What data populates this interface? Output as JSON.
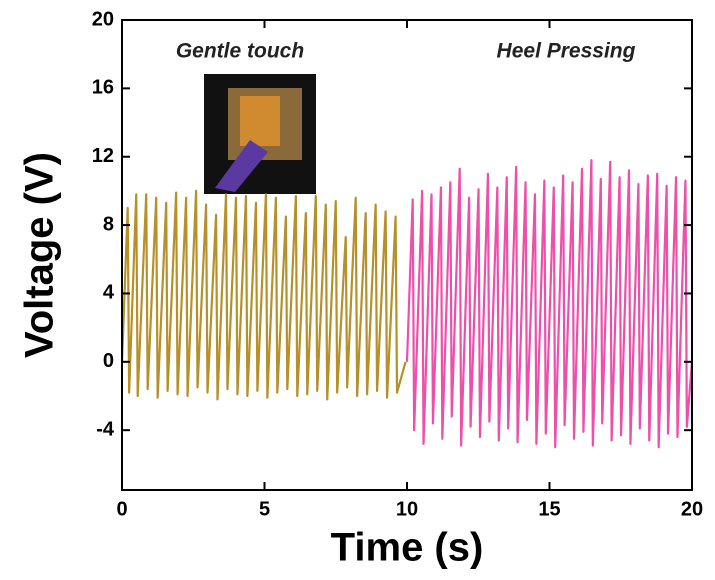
{
  "chart_data": {
    "type": "line",
    "x_label": "Time (s)",
    "y_label": "Voltage (V)",
    "xlim": [
      0,
      20
    ],
    "xticks": [
      0,
      5,
      10,
      15,
      20
    ],
    "ylim": [
      -7.5,
      20
    ],
    "yticks": [
      -4,
      0,
      4,
      8,
      12,
      16,
      20
    ],
    "series": [
      {
        "name": "Gentle touch",
        "color": "#b8902a",
        "x": [
          0,
          0.2,
          0.25,
          0.5,
          0.55,
          0.85,
          0.9,
          1.2,
          1.25,
          1.55,
          1.6,
          1.9,
          1.95,
          2.25,
          2.3,
          2.6,
          2.65,
          2.95,
          3,
          3.3,
          3.35,
          3.65,
          3.7,
          4,
          4.05,
          4.35,
          4.4,
          4.7,
          4.75,
          5.05,
          5.1,
          5.4,
          5.45,
          5.75,
          5.8,
          6.1,
          6.15,
          6.45,
          6.5,
          6.8,
          6.85,
          7.15,
          7.2,
          7.5,
          7.55,
          7.85,
          7.9,
          8.2,
          8.25,
          8.55,
          8.6,
          8.9,
          8.95,
          9.25,
          9.3,
          9.6,
          9.65,
          9.95
        ],
        "values": [
          0,
          9,
          -1.8,
          9.8,
          -2,
          9.8,
          -1.6,
          9.6,
          -2.1,
          9.3,
          -1.7,
          9.9,
          -1.9,
          9.6,
          -2,
          10,
          -1.5,
          9.2,
          -1.8,
          8.6,
          -2.2,
          9.8,
          -1.6,
          9.6,
          -1.9,
          9.7,
          -2,
          9.3,
          -1.7,
          9.8,
          -2.1,
          9.6,
          -1.8,
          8.5,
          -1.6,
          9.7,
          -2,
          8.7,
          -1.9,
          9.7,
          -1.7,
          9.2,
          -2.2,
          9.4,
          -1.8,
          7.3,
          -1.5,
          9.6,
          -2,
          8.7,
          -1.9,
          9.2,
          -1.7,
          8.8,
          -2.1,
          8.5,
          -1.8,
          0
        ]
      },
      {
        "name": "Heel Pressing",
        "color": "#ee4fa8",
        "x": [
          10,
          10.2,
          10.25,
          10.53,
          10.58,
          10.86,
          10.91,
          11.19,
          11.24,
          11.52,
          11.57,
          11.85,
          11.9,
          12.18,
          12.23,
          12.51,
          12.56,
          12.84,
          12.89,
          13.17,
          13.22,
          13.5,
          13.55,
          13.83,
          13.88,
          14.16,
          14.21,
          14.49,
          14.54,
          14.82,
          14.87,
          15.15,
          15.2,
          15.48,
          15.53,
          15.81,
          15.86,
          16.14,
          16.19,
          16.47,
          16.52,
          16.8,
          16.85,
          17.13,
          17.18,
          17.46,
          17.51,
          17.79,
          17.84,
          18.12,
          18.17,
          18.45,
          18.5,
          18.78,
          18.83,
          19.11,
          19.16,
          19.44,
          19.49,
          19.77,
          19.82,
          20
        ],
        "values": [
          0,
          9.5,
          -4,
          10,
          -4.8,
          9.8,
          -3.6,
          10.2,
          -4.5,
          10.5,
          -3.2,
          11.3,
          -4.9,
          9.6,
          -3.8,
          10.1,
          -4.4,
          11,
          -3.5,
          10.2,
          -4.6,
          10.8,
          -3.9,
          11.4,
          -4.7,
          10.5,
          -3.4,
          9.8,
          -4.8,
          10.6,
          -4.2,
          10.2,
          -5,
          10.9,
          -3.7,
          10.5,
          -4.5,
          11.3,
          -4.1,
          11.8,
          -4.9,
          10.7,
          -3.6,
          11.7,
          -4.6,
          10.8,
          -4.3,
          11.2,
          -4.8,
          10.4,
          -3.9,
          10.9,
          -4.6,
          11,
          -5,
          10.3,
          -4.2,
          10.8,
          -4.4,
          10.6,
          -3.8,
          0
        ]
      }
    ]
  }
}
